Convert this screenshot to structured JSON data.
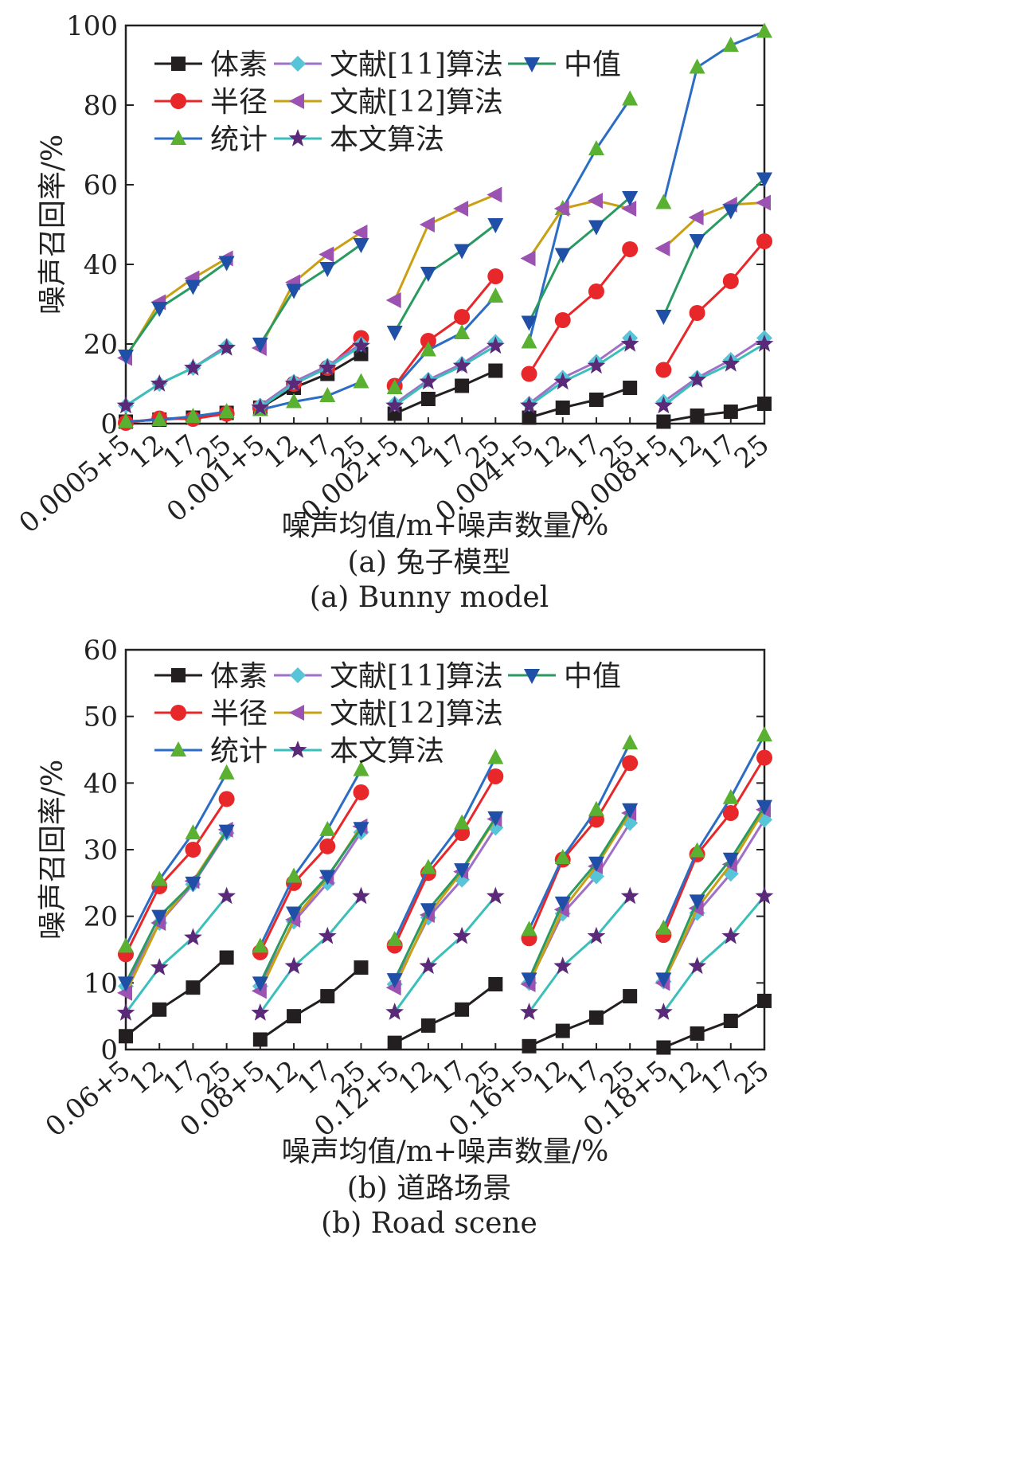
{
  "chart_data": [
    {
      "type": "line",
      "xlabel": "噪声均值/m+噪声数量/%",
      "ylabel": "噪声召回率/%",
      "caption_cn": "(a) 兔子模型",
      "caption_en": "(a) Bunny model",
      "ylim": [
        0,
        100
      ],
      "yticks": [
        "0",
        "20",
        "40",
        "60",
        "80",
        "100"
      ],
      "group_labels": [
        "0.0005+5",
        "0.001+5",
        "0.002+5",
        "0.004+5",
        "0.008+5"
      ],
      "sub_labels": [
        "12",
        "17",
        "25"
      ],
      "legend_position": "top-left",
      "series": [
        {
          "name": "体素",
          "color": "#231f20",
          "marker": "square",
          "values": [
            [
              0.5,
              1.0,
              1.5,
              2.7
            ],
            [
              4.0,
              9.0,
              12.5,
              17.5
            ],
            [
              2.5,
              6.2,
              9.5,
              13.3
            ],
            [
              1.5,
              4.0,
              6.0,
              9.0
            ],
            [
              0.5,
              2.0,
              3.0,
              5.0
            ]
          ]
        },
        {
          "name": "半径",
          "color": "#e8272a",
          "marker": "circle",
          "values": [
            [
              0.2,
              1.3,
              1.2,
              2.5
            ],
            [
              4.0,
              10.0,
              14.0,
              21.5
            ],
            [
              9.5,
              20.8,
              26.8,
              37.0
            ],
            [
              12.5,
              26.0,
              33.2,
              43.8
            ],
            [
              13.5,
              27.8,
              35.8,
              45.8
            ]
          ]
        },
        {
          "name": "统计",
          "color": "#2b6cc4",
          "marker": "triangle-up",
          "marker_color": "#5ab030",
          "values": [
            [
              0.5,
              1.0,
              1.8,
              3.0
            ],
            [
              3.5,
              5.5,
              7.0,
              10.5
            ],
            [
              9.0,
              18.5,
              22.8,
              32.0
            ],
            [
              20.5,
              54.0,
              69.0,
              81.5
            ],
            [
              55.5,
              89.5,
              95.0,
              98.5
            ]
          ]
        },
        {
          "name": "文献[11]算法",
          "color": "#a070c8",
          "marker": "diamond",
          "marker_color": "#58c4d8",
          "values": [
            [
              4.5,
              10.0,
              14.0,
              19.5
            ],
            [
              4.5,
              10.5,
              14.5,
              20.0
            ],
            [
              5.0,
              11.0,
              15.0,
              20.5
            ],
            [
              5.0,
              11.5,
              15.5,
              21.5
            ],
            [
              5.5,
              11.5,
              16.0,
              21.5
            ]
          ]
        },
        {
          "name": "文献[12]算法",
          "color": "#c9a013",
          "marker": "triangle-left",
          "marker_color": "#9b52b0",
          "values": [
            [
              16.5,
              30.5,
              36.5,
              41.5
            ],
            [
              19.0,
              35.5,
              42.5,
              48.0
            ],
            [
              31.0,
              50.0,
              54.0,
              57.5
            ],
            [
              41.5,
              54.0,
              56.0,
              54.0
            ],
            [
              44.0,
              51.8,
              55.0,
              55.5
            ]
          ]
        },
        {
          "name": "中值",
          "color": "#2a9a62",
          "marker": "triangle-down",
          "marker_color": "#1f4fa6",
          "values": [
            [
              17.0,
              29.0,
              34.5,
              40.5
            ],
            [
              20.0,
              33.5,
              39.0,
              45.0
            ],
            [
              23.0,
              37.8,
              43.5,
              50.0
            ],
            [
              25.5,
              42.5,
              49.5,
              56.8
            ],
            [
              27.0,
              46.0,
              53.5,
              61.5
            ]
          ]
        },
        {
          "name": "本文算法",
          "color": "#3bbfba",
          "marker": "star",
          "marker_color": "#5a2a78",
          "values": [
            [
              4.5,
              10.0,
              14.0,
              19.0
            ],
            [
              4.0,
              10.0,
              14.0,
              19.5
            ],
            [
              4.5,
              10.5,
              14.5,
              19.5
            ],
            [
              4.5,
              10.5,
              14.5,
              20.0
            ],
            [
              4.5,
              11.0,
              15.0,
              20.0
            ]
          ]
        }
      ]
    },
    {
      "type": "line",
      "xlabel": "噪声均值/m+噪声数量/%",
      "ylabel": "噪声召回率/%",
      "caption_cn": "(b) 道路场景",
      "caption_en": "(b) Road scene",
      "ylim": [
        0,
        60
      ],
      "yticks": [
        "0",
        "10",
        "20",
        "30",
        "40",
        "50",
        "60"
      ],
      "group_labels": [
        "0.06+5",
        "0.08+5",
        "0.12+5",
        "0.16+5",
        "0.18+5"
      ],
      "sub_labels": [
        "12",
        "17",
        "25"
      ],
      "legend_position": "top-left",
      "series": [
        {
          "name": "体素",
          "color": "#231f20",
          "marker": "square",
          "values": [
            [
              2.0,
              6.0,
              9.3,
              13.8
            ],
            [
              1.5,
              5.0,
              8.0,
              12.3
            ],
            [
              1.0,
              3.6,
              6.0,
              9.8
            ],
            [
              0.5,
              2.8,
              4.8,
              8.0
            ],
            [
              0.3,
              2.4,
              4.3,
              7.3
            ]
          ]
        },
        {
          "name": "半径",
          "color": "#e8272a",
          "marker": "circle",
          "values": [
            [
              14.3,
              24.5,
              30.0,
              37.6
            ],
            [
              14.6,
              25.0,
              30.5,
              38.6
            ],
            [
              15.6,
              26.5,
              32.5,
              41.0
            ],
            [
              16.7,
              28.5,
              34.5,
              43.0
            ],
            [
              17.2,
              29.3,
              35.5,
              43.8
            ]
          ]
        },
        {
          "name": "统计",
          "color": "#2b6cc4",
          "marker": "triangle-up",
          "marker_color": "#5ab030",
          "values": [
            [
              15.5,
              25.5,
              32.5,
              41.5
            ],
            [
              15.5,
              26.0,
              33.0,
              42.0
            ],
            [
              16.5,
              27.3,
              34.0,
              43.8
            ],
            [
              18.0,
              28.8,
              36.0,
              46.0
            ],
            [
              18.2,
              29.8,
              37.8,
              47.2
            ]
          ]
        },
        {
          "name": "文献[11]算法",
          "color": "#a070c8",
          "marker": "diamond",
          "marker_color": "#58c4d8",
          "values": [
            [
              9.5,
              19.0,
              24.8,
              32.5
            ],
            [
              9.5,
              19.2,
              25.0,
              32.6
            ],
            [
              9.8,
              19.8,
              25.5,
              33.3
            ],
            [
              10.0,
              20.4,
              26.0,
              34.0
            ],
            [
              10.2,
              20.5,
              26.4,
              34.5
            ]
          ]
        },
        {
          "name": "文献[12]算法",
          "color": "#c9a013",
          "marker": "triangle-left",
          "marker_color": "#9b52b0",
          "values": [
            [
              8.5,
              19.0,
              25.3,
              33.0
            ],
            [
              8.8,
              19.5,
              25.8,
              33.5
            ],
            [
              9.3,
              20.2,
              26.7,
              34.6
            ],
            [
              9.8,
              21.0,
              27.5,
              35.5
            ],
            [
              10.0,
              21.2,
              27.8,
              36.0
            ]
          ]
        },
        {
          "name": "中值",
          "color": "#2a9a62",
          "marker": "triangle-down",
          "marker_color": "#1f4fa6",
          "values": [
            [
              10.0,
              20.0,
              25.0,
              32.8
            ],
            [
              10.0,
              20.5,
              26.0,
              33.2
            ],
            [
              10.5,
              21.0,
              27.0,
              34.8
            ],
            [
              10.6,
              22.0,
              28.0,
              36.0
            ],
            [
              10.6,
              22.3,
              28.6,
              36.5
            ]
          ]
        },
        {
          "name": "本文算法",
          "color": "#3bbfba",
          "marker": "star",
          "marker_color": "#5a2a78",
          "values": [
            [
              5.5,
              12.3,
              16.8,
              23.0
            ],
            [
              5.5,
              12.5,
              17.0,
              23.0
            ],
            [
              5.6,
              12.5,
              17.0,
              23.0
            ],
            [
              5.6,
              12.5,
              17.0,
              23.0
            ],
            [
              5.6,
              12.5,
              17.0,
              23.0
            ]
          ]
        }
      ]
    }
  ]
}
